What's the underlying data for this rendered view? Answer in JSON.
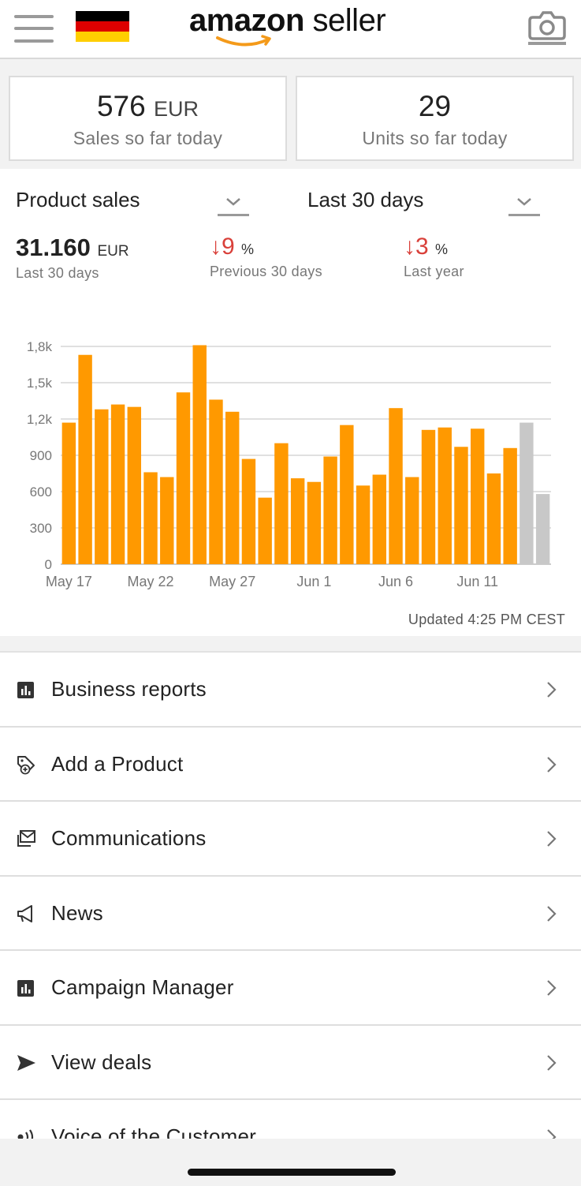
{
  "header": {
    "logo_bold": "amazon",
    "logo_light": " seller",
    "menu_icon": "hamburger-icon",
    "flag_icon": "germany-flag-icon",
    "camera_icon": "camera-icon",
    "colors": {
      "flag": [
        "#000000",
        "#dd0000",
        "#ffce00"
      ],
      "smile": "#f49a1a"
    }
  },
  "today": {
    "sales_value": "576",
    "sales_currency": "EUR",
    "sales_label": "Sales so far today",
    "units_value": "29",
    "units_label": "Units so far today"
  },
  "sales": {
    "metric_selector": "Product sales",
    "period_selector": "Last 30 days",
    "total_value": "31.160",
    "total_currency": "EUR",
    "total_label": "Last 30 days",
    "prev_change": "9",
    "prev_unit": "%",
    "prev_label": "Previous 30 days",
    "year_change": "3",
    "year_unit": "%",
    "year_label": "Last year",
    "updated": "Updated 4:25 PM CEST"
  },
  "chart_data": {
    "type": "bar",
    "y_ticks": [
      "0",
      "300",
      "600",
      "900",
      "1,2k",
      "1,5k",
      "1,8k"
    ],
    "ylim": [
      0,
      1800
    ],
    "x_ticks": [
      "May 17",
      "May 22",
      "May 27",
      "Jun 1",
      "Jun 6",
      "Jun 11"
    ],
    "categories": [
      "May 17",
      "May 18",
      "May 19",
      "May 20",
      "May 21",
      "May 22",
      "May 23",
      "May 24",
      "May 25",
      "May 26",
      "May 27",
      "May 28",
      "May 29",
      "May 30",
      "May 31",
      "Jun 1",
      "Jun 2",
      "Jun 3",
      "Jun 4",
      "Jun 5",
      "Jun 6",
      "Jun 7",
      "Jun 8",
      "Jun 9",
      "Jun 10",
      "Jun 11",
      "Jun 12",
      "Jun 13",
      "Jun 14",
      "Jun 15"
    ],
    "series": [
      {
        "color": "#ff9900",
        "values": [
          1170,
          1730,
          1280,
          1320,
          1300,
          760,
          720,
          1420,
          1810,
          1360,
          1260,
          870,
          550,
          1000,
          710,
          680,
          890,
          1150,
          650,
          740,
          1290,
          720,
          1110,
          1130,
          970,
          1120,
          750,
          960,
          null,
          null
        ]
      },
      {
        "color": "#c8c8c8",
        "values": [
          null,
          null,
          null,
          null,
          null,
          null,
          null,
          null,
          null,
          null,
          null,
          null,
          null,
          null,
          null,
          null,
          null,
          null,
          null,
          null,
          null,
          null,
          null,
          null,
          null,
          null,
          null,
          null,
          1170,
          580
        ]
      }
    ],
    "grid": true
  },
  "menu": {
    "items": [
      {
        "label": "Business reports",
        "icon": "bar-chart-icon"
      },
      {
        "label": "Add a Product",
        "icon": "add-tag-icon"
      },
      {
        "label": "Communications",
        "icon": "messages-icon"
      },
      {
        "label": "News",
        "icon": "megaphone-icon"
      },
      {
        "label": "Campaign Manager",
        "icon": "bar-chart-icon"
      },
      {
        "label": "View deals",
        "icon": "paper-plane-icon"
      },
      {
        "label": "Voice of the Customer",
        "icon": "voice-icon"
      }
    ]
  }
}
